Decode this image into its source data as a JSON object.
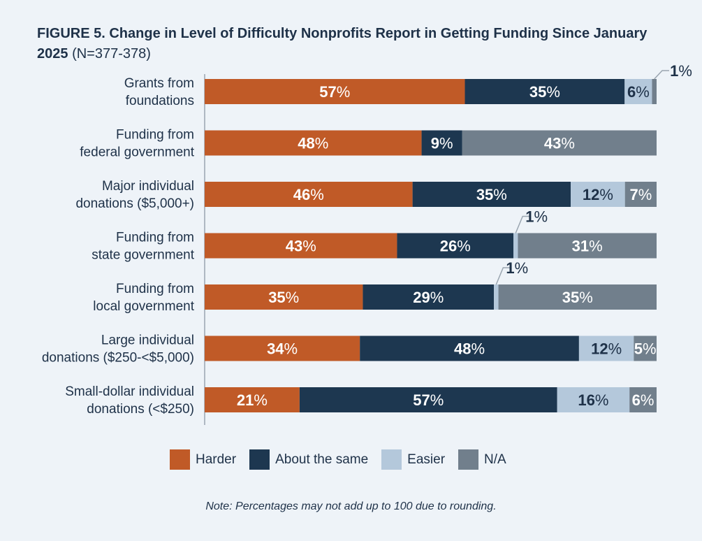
{
  "title": {
    "bold": "FIGURE 5. Change in Level of Difficulty Nonprofits Report in Getting Funding Since January 2025",
    "sub": "(N=377-378)"
  },
  "note": "Note: Percentages may not add up to 100 due to rounding.",
  "colors": {
    "Harder": "#c05a27",
    "About the same": "#1d3750",
    "Easier": "#b4c8db",
    "N/A": "#717f8c",
    "axis": "#9aa5b0",
    "label_light": "#ffffff",
    "label_dark": "#1e3148"
  },
  "chart_data": {
    "type": "bar",
    "orientation": "horizontal",
    "stacked": true,
    "categories": [
      "Grants from foundations",
      "Funding from federal government",
      "Major individual donations ($5,000+)",
      "Funding from state government",
      "Funding from local government",
      "Large individual donations ($250-<$5,000)",
      "Small-dollar individual donations (<$250)"
    ],
    "category_lines": [
      [
        "Grants from",
        "foundations"
      ],
      [
        "Funding from",
        "federal government"
      ],
      [
        "Major individual",
        "donations ($5,000+)"
      ],
      [
        "Funding from",
        "state government"
      ],
      [
        "Funding from",
        "local government"
      ],
      [
        "Large individual",
        "donations ($250-<$5,000)"
      ],
      [
        "Small-dollar individual",
        "donations (<$250)"
      ]
    ],
    "series": [
      {
        "name": "Harder",
        "values": [
          57,
          48,
          46,
          43,
          35,
          34,
          21
        ]
      },
      {
        "name": "About the same",
        "values": [
          35,
          9,
          35,
          26,
          29,
          48,
          57
        ]
      },
      {
        "name": "Easier",
        "values": [
          6,
          0,
          12,
          1,
          1,
          12,
          16
        ]
      },
      {
        "name": "N/A",
        "values": [
          1,
          43,
          7,
          31,
          35,
          5,
          6
        ]
      }
    ],
    "legend": [
      "Harder",
      "About the same",
      "Easier",
      "N/A"
    ],
    "legend_position": "bottom",
    "value_suffix": "%",
    "grid": false
  }
}
